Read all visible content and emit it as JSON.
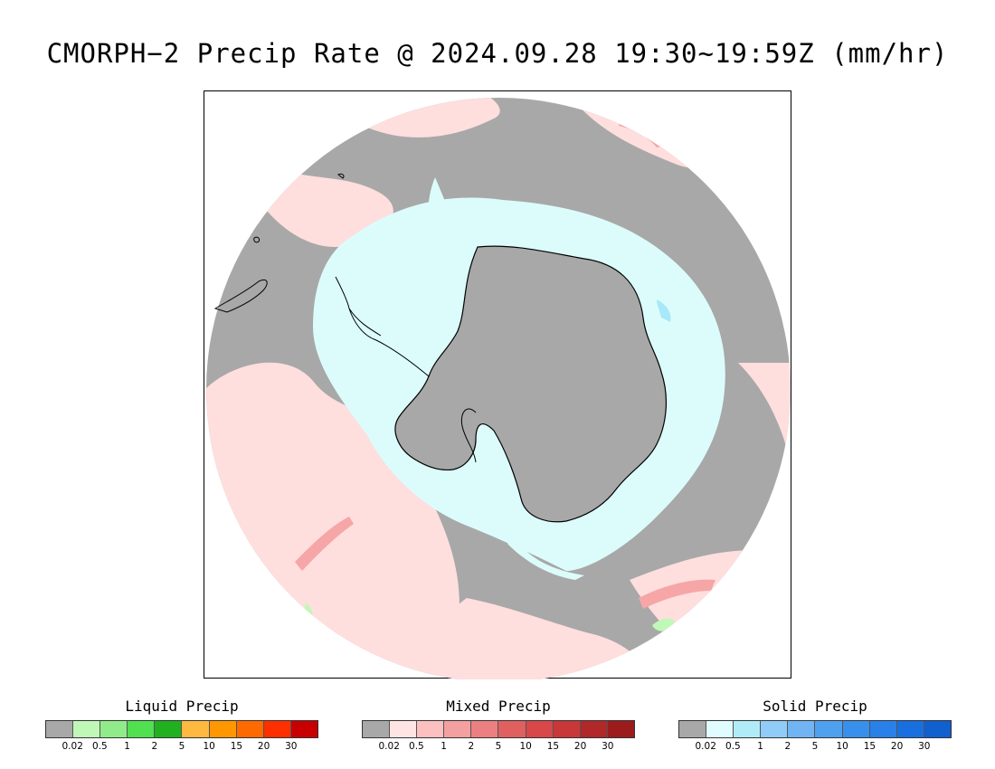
{
  "title": "CMORPH−2 Precip Rate @ 2024.09.28 19:30~19:59Z (mm/hr)",
  "map": {
    "projection": "south-polar-stereographic",
    "colors": {
      "no_precip": "#a8a8a8",
      "mixed_light": "#ffdede",
      "mixed_moderate": "#f6a6a6",
      "mixed_heavy": "#e07070",
      "solid_light": "#dcfcfc",
      "solid_moderate": "#a8e8f8",
      "liquid_light": "#c0f8b8",
      "coastline": "#000000"
    }
  },
  "legends": [
    {
      "id": "liquid",
      "title": "Liquid Precip",
      "colors": [
        "#a8a8a8",
        "#c0f8b8",
        "#90ec88",
        "#50e050",
        "#20b020",
        "#ffb840",
        "#ff9800",
        "#ff6a00",
        "#ff3000",
        "#c80000"
      ],
      "ticks": [
        "0.02",
        "0.5",
        "1",
        "2",
        "5",
        "10",
        "15",
        "20",
        "30"
      ]
    },
    {
      "id": "mixed",
      "title": "Mixed Precip",
      "colors": [
        "#a8a8a8",
        "#ffe4e4",
        "#fcc0c0",
        "#f4a0a0",
        "#ec8080",
        "#e06060",
        "#d84848",
        "#c83838",
        "#b02828",
        "#9c1c1c"
      ],
      "ticks": [
        "0.02",
        "0.5",
        "1",
        "2",
        "5",
        "10",
        "15",
        "20",
        "30"
      ]
    },
    {
      "id": "solid",
      "title": "Solid Precip",
      "colors": [
        "#a8a8a8",
        "#e0fcff",
        "#b0ecf8",
        "#90ccf8",
        "#70b4f4",
        "#50a0f0",
        "#3890ec",
        "#2880e8",
        "#1870e0",
        "#1060d0"
      ],
      "ticks": [
        "0.02",
        "0.5",
        "1",
        "2",
        "5",
        "10",
        "15",
        "20",
        "30"
      ]
    }
  ]
}
